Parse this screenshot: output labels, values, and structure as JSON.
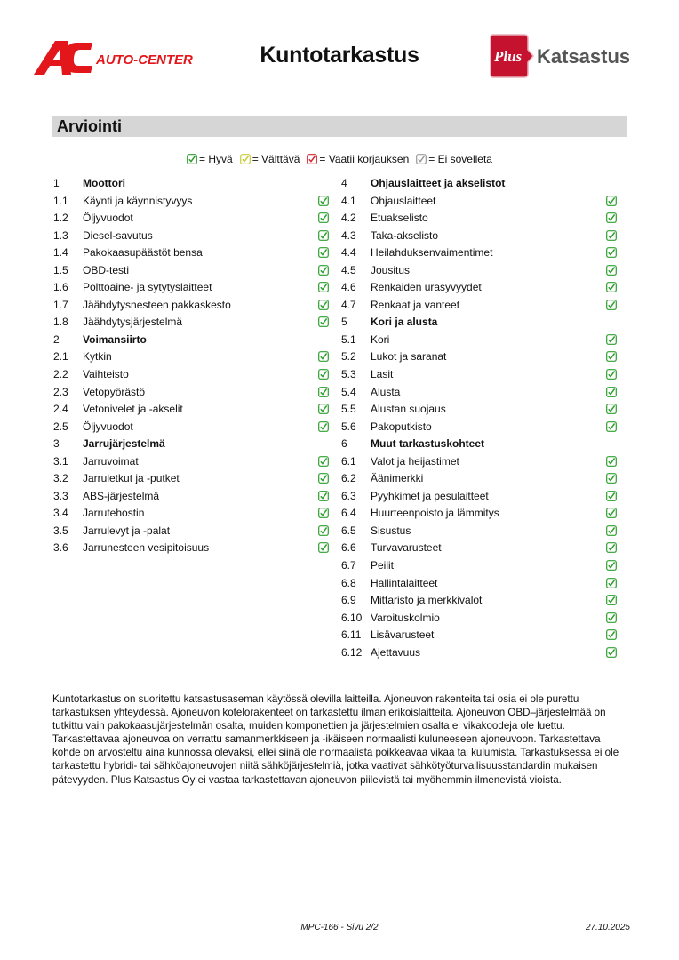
{
  "header": {
    "title": "Kuntotarkastus",
    "logo_left": "AC AUTO-CENTER",
    "logo_right": {
      "badge": "Plus",
      "name": "Katsastus"
    }
  },
  "section_title": "Arviointi",
  "legend": [
    {
      "status": "good",
      "color": "#2e9e2e",
      "label": "= Hyvä"
    },
    {
      "status": "fair",
      "color": "#c8cc3a",
      "label": "= Välttävä"
    },
    {
      "status": "repair",
      "color": "#d4262e",
      "label": "= Vaatii korjauksen"
    },
    {
      "status": "na",
      "color": "#999999",
      "label": "= Ei sovelleta"
    }
  ],
  "left_column": [
    {
      "num": "1",
      "label": "Moottori",
      "header": true
    },
    {
      "num": "1.1",
      "label": "Käynti ja käynnistyvyys",
      "status": "good"
    },
    {
      "num": "1.2",
      "label": "Öljyvuodot",
      "status": "good"
    },
    {
      "num": "1.3",
      "label": "Diesel-savutus",
      "status": "good"
    },
    {
      "num": "1.4",
      "label": "Pakokaasupäästöt bensa",
      "status": "good"
    },
    {
      "num": "1.5",
      "label": "OBD-testi",
      "status": "good"
    },
    {
      "num": "1.6",
      "label": "Polttoaine- ja sytytyslaitteet",
      "status": "good"
    },
    {
      "num": "1.7",
      "label": "Jäähdytysnesteen pakkaskesto",
      "status": "good"
    },
    {
      "num": "1.8",
      "label": "Jäähdytysjärjestelmä",
      "status": "good"
    },
    {
      "num": "2",
      "label": "Voimansiirto",
      "header": true
    },
    {
      "num": "2.1",
      "label": "Kytkin",
      "status": "good"
    },
    {
      "num": "2.2",
      "label": "Vaihteisto",
      "status": "good"
    },
    {
      "num": "2.3",
      "label": "Vetopyörästö",
      "status": "good"
    },
    {
      "num": "2.4",
      "label": "Vetonivelet ja -akselit",
      "status": "good"
    },
    {
      "num": "2.5",
      "label": "Öljyvuodot",
      "status": "good"
    },
    {
      "num": "3",
      "label": "Jarrujärjestelmä",
      "header": true
    },
    {
      "num": "3.1",
      "label": "Jarruvoimat",
      "status": "good"
    },
    {
      "num": "3.2",
      "label": "Jarruletkut ja -putket",
      "status": "good"
    },
    {
      "num": "3.3",
      "label": "ABS-järjestelmä",
      "status": "good"
    },
    {
      "num": "3.4",
      "label": "Jarrutehostin",
      "status": "good"
    },
    {
      "num": "3.5",
      "label": "Jarrulevyt ja -palat",
      "status": "good"
    },
    {
      "num": "3.6",
      "label": "Jarrunesteen vesipitoisuus",
      "status": "good"
    }
  ],
  "right_column": [
    {
      "num": "4",
      "label": "Ohjauslaitteet ja akselistot",
      "header": true
    },
    {
      "num": "4.1",
      "label": "Ohjauslaitteet",
      "status": "good"
    },
    {
      "num": "4.2",
      "label": "Etuakselisto",
      "status": "good"
    },
    {
      "num": "4.3",
      "label": "Taka-akselisto",
      "status": "good"
    },
    {
      "num": "4.4",
      "label": "Heilahduksenvaimentimet",
      "status": "good"
    },
    {
      "num": "4.5",
      "label": "Jousitus",
      "status": "good"
    },
    {
      "num": "4.6",
      "label": "Renkaiden urasyvyydet",
      "status": "good"
    },
    {
      "num": "4.7",
      "label": "Renkaat ja vanteet",
      "status": "good"
    },
    {
      "num": "5",
      "label": "Kori ja alusta",
      "header": true
    },
    {
      "num": "5.1",
      "label": "Kori",
      "status": "good"
    },
    {
      "num": "5.2",
      "label": "Lukot ja saranat",
      "status": "good"
    },
    {
      "num": "5.3",
      "label": "Lasit",
      "status": "good"
    },
    {
      "num": "5.4",
      "label": "Alusta",
      "status": "good"
    },
    {
      "num": "5.5",
      "label": "Alustan suojaus",
      "status": "good"
    },
    {
      "num": "5.6",
      "label": "Pakoputkisto",
      "status": "good"
    },
    {
      "num": "6",
      "label": "Muut tarkastuskohteet",
      "header": true
    },
    {
      "num": "6.1",
      "label": "Valot ja heijastimet",
      "status": "good"
    },
    {
      "num": "6.2",
      "label": "Äänimerkki",
      "status": "good"
    },
    {
      "num": "6.3",
      "label": "Pyyhkimet ja pesulaitteet",
      "status": "good"
    },
    {
      "num": "6.4",
      "label": "Huurteenpoisto ja lämmitys",
      "status": "good"
    },
    {
      "num": "6.5",
      "label": "Sisustus",
      "status": "good"
    },
    {
      "num": "6.6",
      "label": "Turvavarusteet",
      "status": "good"
    },
    {
      "num": "6.7",
      "label": "Peilit",
      "status": "good"
    },
    {
      "num": "6.8",
      "label": "Hallintalaitteet",
      "status": "good"
    },
    {
      "num": "6.9",
      "label": "Mittaristo ja merkkivalot",
      "status": "good"
    },
    {
      "num": "6.10",
      "label": "Varoituskolmio",
      "status": "good"
    },
    {
      "num": "6.11",
      "label": "Lisävarusteet",
      "status": "good"
    },
    {
      "num": "6.12",
      "label": "Ajettavuus",
      "status": "good"
    }
  ],
  "disclaimer": "Kuntotarkastus on suoritettu katsastusaseman käytössä olevilla laitteilla. Ajoneuvon rakenteita tai osia ei ole purettu tarkastuksen yhteydessä. Ajoneuvon kotelorakenteet on tarkastettu ilman erikoislaitteita. Ajoneuvon OBD–järjestelmää on tutkittu vain pakokaasujärjestelmän osalta, muiden komponettien ja järjestelmien osalta ei vikakoodeja ole luettu. Tarkastettavaa ajoneuvoa on verrattu samanmerkkiseen ja -ikäiseen normaalisti kuluneeseen ajoneuvoon. Tarkastettava kohde on arvosteltu aina kunnossa olevaksi, ellei siinä ole normaalista poikkeavaa vikaa tai kulumista. Tarkastuksessa ei ole tarkastettu hybridi- tai sähköajoneuvojen niitä sähköjärjestelmiä, jotka vaativat sähkötyöturvallisuusstandardin mukaisen pätevyyden. Plus Katsastus Oy ei vastaa tarkastettavan ajoneuvon piilevistä tai myöhemmin ilmenevistä vioista.",
  "footer": {
    "page": "MPC-166 - Sivu 2/2",
    "date": "27.10.2025"
  }
}
